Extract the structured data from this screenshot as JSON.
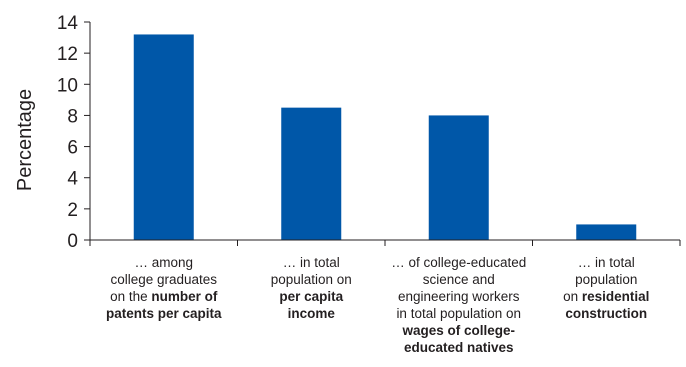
{
  "chart_data": {
    "type": "bar",
    "ylabel": "Percentage",
    "ylim": [
      0,
      14
    ],
    "yticks": [
      0,
      2,
      4,
      6,
      8,
      10,
      12,
      14
    ],
    "grid": false,
    "bar_color": "#0057a8",
    "categories": [
      [
        {
          "t": "… among",
          "b": false
        },
        {
          "t": "college graduates",
          "b": false
        },
        {
          "t": "on the ",
          "b": false,
          "more": {
            "t": "number of",
            "b": true
          }
        },
        {
          "t": "patents per capita",
          "b": true
        }
      ],
      [
        {
          "t": "… in total",
          "b": false
        },
        {
          "t": "population on",
          "b": false
        },
        {
          "t": "per capita",
          "b": true
        },
        {
          "t": "income",
          "b": true
        }
      ],
      [
        {
          "t": "… of college-educated",
          "b": false
        },
        {
          "t": "science and",
          "b": false
        },
        {
          "t": "engineering workers",
          "b": false
        },
        {
          "t": "in total population on",
          "b": false
        },
        {
          "t": "wages of college-",
          "b": true
        },
        {
          "t": "educated natives",
          "b": true
        }
      ],
      [
        {
          "t": "… in total",
          "b": false
        },
        {
          "t": "population",
          "b": false
        },
        {
          "t": "on ",
          "b": false,
          "more": {
            "t": "residential",
            "b": true
          }
        },
        {
          "t": "construction",
          "b": true
        }
      ]
    ],
    "values": [
      13.2,
      8.5,
      8.0,
      1.0
    ]
  }
}
